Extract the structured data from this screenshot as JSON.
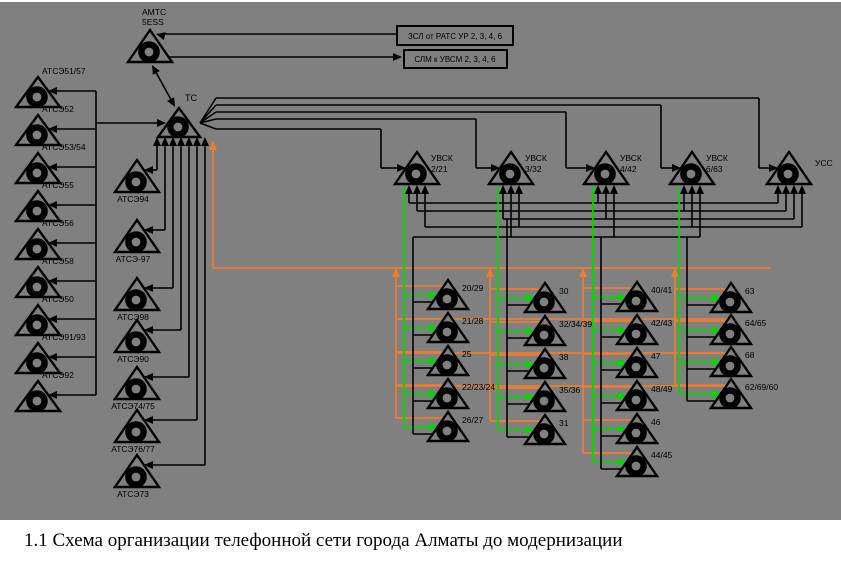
{
  "title": "1.1 Схема организации телефонной сети города Алматы до модернизации",
  "colors": {
    "background": "#808080",
    "line": "#000000",
    "green": "#00D800",
    "orange": "#ED7D31",
    "paper": "#FFFFFF"
  },
  "amts": {
    "line1": "АМТС",
    "line2": "5ESS"
  },
  "info_boxes": [
    {
      "label": "ЗСЛ от РАТС УР 2, 3, 4, 6"
    },
    {
      "label": "СЛМ к УВСМ 2, 3, 4, 6"
    }
  ],
  "tc": {
    "label": "ТС"
  },
  "left_column": [
    "АТСЭ51/57",
    "АТСЭ52",
    "АТСЭ53/54",
    "АТСЭ55",
    "АТСЭ56",
    "АТСЭ58",
    "АТСЭ50",
    "АТСЭ91/93",
    "АТСЭ92"
  ],
  "middle_column": [
    "АТСЭ94",
    "АТСЭ-97",
    "АТСЭ98",
    "АТСЭ90",
    "АТСЭ74/75",
    "АТСЭ76/77",
    "АТСЭ73"
  ],
  "uvsk_nodes": [
    {
      "name": "УВСК",
      "code": "2/21"
    },
    {
      "name": "УВСК",
      "code": "3/32"
    },
    {
      "name": "УВСК",
      "code": "4/42"
    },
    {
      "name": "УВСК",
      "code": "6/63"
    }
  ],
  "uss": {
    "label": "УСС"
  },
  "clusters": [
    [
      "20/29",
      "21/28",
      "25",
      "22/23/24",
      "26/27"
    ],
    [
      "30",
      "32/34/39",
      "38",
      "35/36",
      "31"
    ],
    [
      "40/41",
      "42/43",
      "47",
      "48/49",
      "46",
      "44/45"
    ],
    [
      "63",
      "64/65",
      "68",
      "62/69/60"
    ]
  ]
}
